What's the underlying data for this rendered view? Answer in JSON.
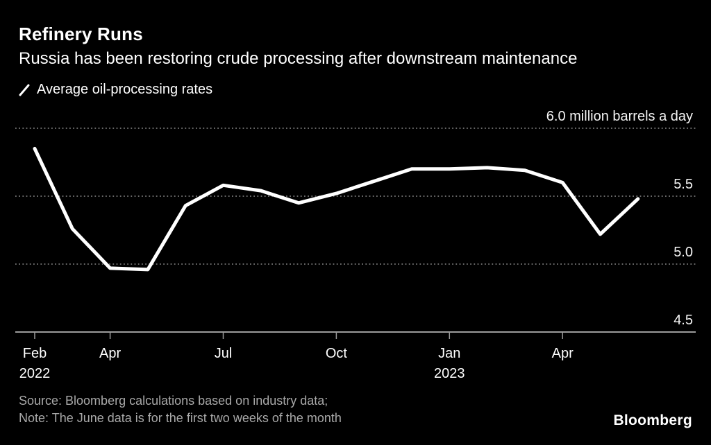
{
  "header": {
    "title": "Refinery Runs",
    "subtitle": "Russia has been restoring crude processing after downstream maintenance"
  },
  "legend": {
    "label": "Average oil-processing rates"
  },
  "chart_data": {
    "type": "line",
    "title": "Refinery Runs",
    "subtitle": "Russia has been restoring crude processing after downstream maintenance",
    "unit": "million barrels a day",
    "x": [
      "Feb 2022",
      "Mar 2022",
      "Apr 2022",
      "May 2022",
      "Jun 2022",
      "Jul 2022",
      "Aug 2022",
      "Sep 2022",
      "Oct 2022",
      "Nov 2022",
      "Dec 2022",
      "Jan 2023",
      "Feb 2023",
      "Mar 2023",
      "Apr 2023",
      "May 2023",
      "Jun 2023"
    ],
    "series": [
      {
        "name": "Average oil-processing rates",
        "color": "#ffffff",
        "values": [
          5.85,
          5.26,
          4.97,
          4.96,
          5.43,
          5.58,
          5.54,
          5.45,
          5.52,
          5.61,
          5.7,
          5.7,
          5.71,
          5.69,
          5.6,
          5.22,
          5.48
        ]
      }
    ],
    "ylim": [
      4.5,
      6.0
    ],
    "y_ticks": [
      {
        "value": 6.0,
        "label": "6.0 million barrels a day"
      },
      {
        "value": 5.5,
        "label": "5.5"
      },
      {
        "value": 5.0,
        "label": "5.0"
      },
      {
        "value": 4.5,
        "label": "4.5"
      }
    ],
    "x_ticks": [
      {
        "index": 0,
        "label": "Feb",
        "sublabel": "2022"
      },
      {
        "index": 2,
        "label": "Apr"
      },
      {
        "index": 5,
        "label": "Jul"
      },
      {
        "index": 8,
        "label": "Oct"
      },
      {
        "index": 11,
        "label": "Jan",
        "sublabel": "2023"
      },
      {
        "index": 14,
        "label": "Apr"
      }
    ],
    "grid": {
      "horizontal": "dotted",
      "vertical": "none"
    },
    "legend_position": "top-left",
    "background": "#000000",
    "line_color": "#ffffff"
  },
  "footer": {
    "source": "Source: Bloomberg calculations based on industry data;",
    "note": "Note: The June data is for the first two weeks of the month",
    "brand": "Bloomberg"
  }
}
